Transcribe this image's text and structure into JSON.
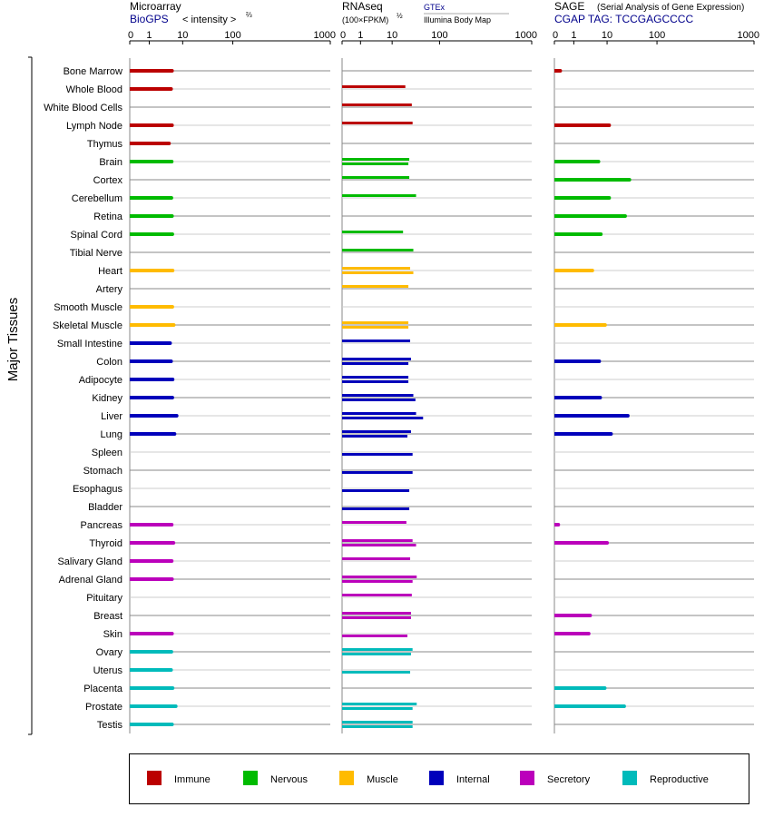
{
  "panels": [
    {
      "id": "microarray",
      "title": "Microarray",
      "source": "BioGPS",
      "unit_text": "< intensity >",
      "unit_sup": "⅔",
      "ticks": [
        "0",
        "1",
        "10",
        "100",
        "1000"
      ]
    },
    {
      "id": "rnaseq",
      "title": "RNAseq",
      "unit_text": "(100×FPKM)",
      "unit_sup": "½",
      "sources": [
        "GTEx",
        "Illumina Body Map"
      ],
      "ticks": [
        "0",
        "1",
        "10",
        "100",
        "1000"
      ]
    },
    {
      "id": "sage",
      "title": "SAGE",
      "subtitle": "(Serial Analysis of Gene Expression)",
      "tag": "CGAP TAG: TCCGAGCCCC",
      "ticks": [
        "0",
        "1",
        "10",
        "100",
        "1000"
      ]
    }
  ],
  "y_group_label": "Major Tissues",
  "legend": [
    {
      "name": "Immune",
      "color": "#bb0000"
    },
    {
      "name": "Nervous",
      "color": "#00bb00"
    },
    {
      "name": "Muscle",
      "color": "#ffbb00"
    },
    {
      "name": "Internal",
      "color": "#0000bb"
    },
    {
      "name": "Secretory",
      "color": "#bb00bb"
    },
    {
      "name": "Reproductive",
      "color": "#00bbbb"
    }
  ],
  "chart_data": {
    "type": "bar",
    "orientation": "horizontal",
    "axis_scale": "power-transformed expression (tick labels 0, 1, 10, 100, 1000)",
    "xlim": [
      0,
      1000
    ],
    "categories": [
      "Bone Marrow",
      "Whole Blood",
      "White Blood Cells",
      "Lymph Node",
      "Thymus",
      "Brain",
      "Cortex",
      "Cerebellum",
      "Retina",
      "Spinal Cord",
      "Tibial Nerve",
      "Heart",
      "Artery",
      "Smooth Muscle",
      "Skeletal Muscle",
      "Small Intestine",
      "Colon",
      "Adipocyte",
      "Kidney",
      "Liver",
      "Lung",
      "Spleen",
      "Stomach",
      "Esophagus",
      "Bladder",
      "Pancreas",
      "Thyroid",
      "Salivary Gland",
      "Adrenal Gland",
      "Pituitary",
      "Breast",
      "Skin",
      "Ovary",
      "Uterus",
      "Placenta",
      "Prostate",
      "Testis"
    ],
    "system": [
      "Immune",
      "Immune",
      "Immune",
      "Immune",
      "Immune",
      "Nervous",
      "Nervous",
      "Nervous",
      "Nervous",
      "Nervous",
      "Nervous",
      "Muscle",
      "Muscle",
      "Muscle",
      "Muscle",
      "Internal",
      "Internal",
      "Internal",
      "Internal",
      "Internal",
      "Internal",
      "Internal",
      "Internal",
      "Internal",
      "Internal",
      "Secretory",
      "Secretory",
      "Secretory",
      "Secretory",
      "Secretory",
      "Secretory",
      "Secretory",
      "Reproductive",
      "Reproductive",
      "Reproductive",
      "Reproductive",
      "Reproductive"
    ],
    "series": [
      {
        "name": "BioGPS",
        "panel": "microarray",
        "values": [
          4.8,
          4.5,
          null,
          4.8,
          3.9,
          4.7,
          null,
          4.6,
          4.8,
          4.9,
          null,
          5.0,
          null,
          4.9,
          5.4,
          4.2,
          4.5,
          5.0,
          4.9,
          6.6,
          5.7,
          null,
          null,
          null,
          null,
          4.7,
          5.3,
          4.7,
          4.8,
          null,
          null,
          4.8,
          4.6,
          4.5,
          5.0,
          6.2,
          4.8
        ]
      },
      {
        "name": "GTEx",
        "panel": "rnaseq",
        "values": [
          null,
          19,
          26,
          27,
          null,
          23,
          23,
          32,
          null,
          17,
          28,
          24,
          22,
          null,
          22,
          24,
          25,
          22,
          28,
          32,
          25,
          null,
          null,
          null,
          null,
          20,
          27,
          24,
          33,
          26,
          25,
          null,
          27,
          null,
          null,
          33,
          27
        ]
      },
      {
        "name": "Illumina Body Map",
        "panel": "rnaseq",
        "values": [
          null,
          null,
          null,
          null,
          null,
          22,
          null,
          null,
          null,
          null,
          null,
          28,
          null,
          null,
          22,
          null,
          22,
          22,
          31,
          45,
          21,
          27,
          27,
          23,
          23,
          null,
          32,
          null,
          27,
          null,
          25,
          21,
          25,
          24,
          null,
          27,
          27
        ]
      },
      {
        "name": "SAGE",
        "panel": "sage",
        "values": [
          0.3,
          null,
          null,
          11,
          null,
          5.5,
          28,
          11,
          23,
          6.5,
          null,
          3.6,
          null,
          null,
          8.7,
          null,
          5.8,
          null,
          6.2,
          26,
          12,
          null,
          null,
          null,
          null,
          0.2,
          10,
          null,
          null,
          null,
          3.1,
          2.8,
          null,
          null,
          8.5,
          22,
          null
        ]
      }
    ]
  }
}
